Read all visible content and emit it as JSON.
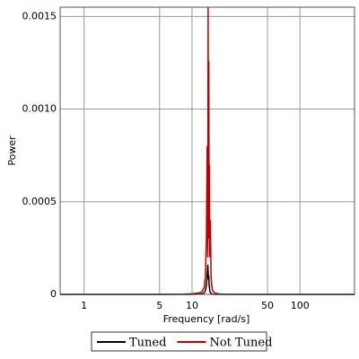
{
  "chart_data": {
    "type": "line",
    "x_label": "Frequency [rad/s]",
    "y_label": "Power",
    "x": [
      0.6,
      1,
      2,
      5,
      8,
      10,
      11,
      12,
      12.5,
      13,
      13.3,
      13.6,
      13.8,
      14.0,
      14.1,
      14.2,
      14.3,
      14.4,
      14.5,
      14.6,
      14.8,
      15.0,
      15.2,
      15.5,
      16,
      17,
      18,
      20,
      30,
      50,
      100,
      320
    ],
    "series": [
      {
        "name": "Tuned",
        "color": "#000000",
        "values": [
          0,
          0,
          0,
          0,
          0,
          0,
          1e-06,
          2e-06,
          4e-06,
          1e-05,
          2e-05,
          5e-05,
          0.0001,
          0.00016,
          0.00012,
          8e-05,
          0.0001,
          5e-05,
          4e-05,
          2e-05,
          1e-05,
          5e-06,
          2e-06,
          1e-06,
          0,
          0,
          0,
          0,
          0,
          0,
          0,
          0
        ]
      },
      {
        "name": "Not Tuned",
        "color": "#c00000",
        "values": [
          0,
          0,
          0,
          0,
          1e-06,
          3e-06,
          6e-06,
          1e-05,
          2e-05,
          4e-05,
          0.0001,
          0.0003,
          0.0008,
          0.0002,
          0.00155,
          0.0004,
          0.00126,
          0.0003,
          0.0007,
          0.0002,
          0.0004,
          0.0001,
          5e-05,
          2e-05,
          1e-05,
          5e-06,
          2e-06,
          1e-06,
          0,
          0,
          0,
          0
        ]
      }
    ],
    "x_log": true,
    "xlim": [
      0.6,
      320
    ],
    "xticks": [
      1,
      5,
      10,
      50,
      100
    ],
    "ylim": [
      0,
      0.00155
    ],
    "yticks": [
      0,
      0.0005,
      {
        "value": 0.001,
        "label": "0.0010"
      },
      0.0015
    ],
    "grid": true,
    "legend": "bottom"
  }
}
